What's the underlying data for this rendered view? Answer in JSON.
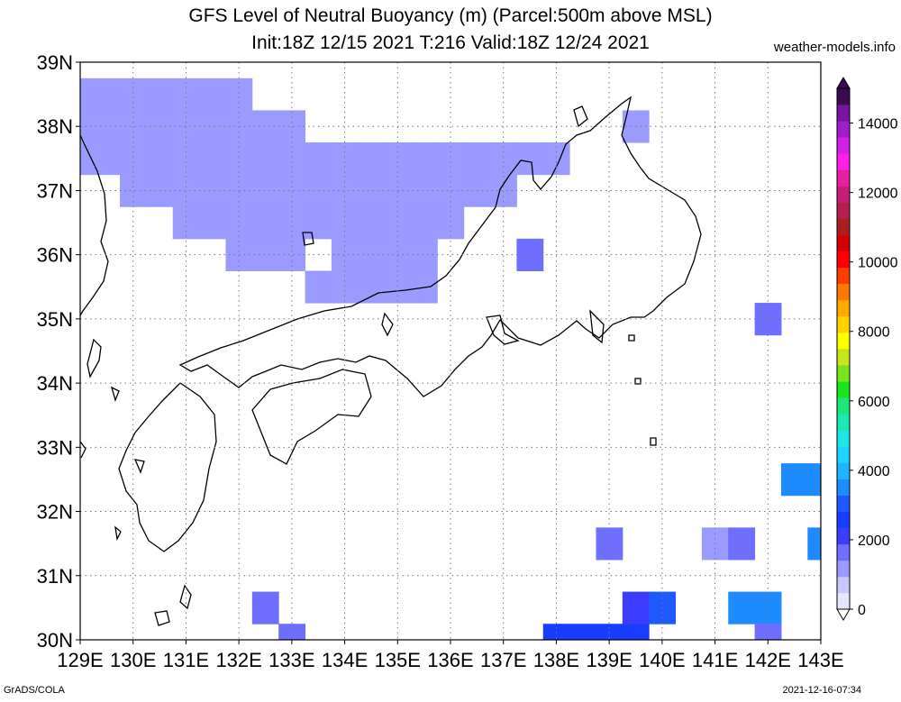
{
  "title_line1": "GFS Level of Neutral Buoyancy (m) (Parcel:500m above MSL)",
  "title_line2": "Init:18Z 12/15 2021 T:216 Valid:18Z 12/24 2021",
  "brand": "weather-models.info",
  "footer_left": "GrADS/COLA",
  "footer_right": "2021-12-16-07:34",
  "map": {
    "lon_range": [
      129,
      143
    ],
    "lat_range": [
      30,
      39
    ],
    "lon_labels": [
      "129E",
      "130E",
      "131E",
      "132E",
      "133E",
      "134E",
      "135E",
      "136E",
      "137E",
      "138E",
      "139E",
      "140E",
      "141E",
      "142E",
      "143E"
    ],
    "lat_labels": [
      "30N",
      "31N",
      "32N",
      "33N",
      "34N",
      "35N",
      "36N",
      "37N",
      "38N",
      "39N"
    ],
    "colorbar_labels": [
      "0",
      "2000",
      "4000",
      "6000",
      "8000",
      "10000",
      "12000",
      "14000"
    ],
    "colorbar_range": [
      0,
      15000
    ],
    "colorbar_colors": [
      "#e6e6ff",
      "#c8c8ff",
      "#9b9bff",
      "#6e6eff",
      "#3c3cff",
      "#1a3cff",
      "#1e5aff",
      "#1e8cff",
      "#1eb4ff",
      "#1ed2ff",
      "#1ee6e6",
      "#1ee6b4",
      "#1ee678",
      "#1ee61e",
      "#78e61e",
      "#c8e61e",
      "#ffff00",
      "#ffd200",
      "#ffaa00",
      "#ff7800",
      "#ff3c00",
      "#ff0000",
      "#d20000",
      "#aa1e1e",
      "#b41e50",
      "#c81e78",
      "#e61ea0",
      "#ff1ee6",
      "#d21ee6",
      "#a01ec8",
      "#7814a0",
      "#3c0a50"
    ],
    "cell_size_deg": 0.5,
    "field": [
      {
        "lon": 129.0,
        "lat": 38.5,
        "v": 1300
      },
      {
        "lon": 129.5,
        "lat": 38.5,
        "v": 1250
      },
      {
        "lon": 130.0,
        "lat": 38.5,
        "v": 1200
      },
      {
        "lon": 130.5,
        "lat": 38.5,
        "v": 1200
      },
      {
        "lon": 131.0,
        "lat": 38.5,
        "v": 1250
      },
      {
        "lon": 131.5,
        "lat": 38.5,
        "v": 1200
      },
      {
        "lon": 132.0,
        "lat": 38.5,
        "v": 1100
      },
      {
        "lon": 129.0,
        "lat": 38.0,
        "v": 1300
      },
      {
        "lon": 129.5,
        "lat": 38.0,
        "v": 1300
      },
      {
        "lon": 130.0,
        "lat": 38.0,
        "v": 1250
      },
      {
        "lon": 130.5,
        "lat": 38.0,
        "v": 1200
      },
      {
        "lon": 131.0,
        "lat": 38.0,
        "v": 1200
      },
      {
        "lon": 131.5,
        "lat": 38.0,
        "v": 1150
      },
      {
        "lon": 132.0,
        "lat": 38.0,
        "v": 1100
      },
      {
        "lon": 132.5,
        "lat": 38.0,
        "v": 1000
      },
      {
        "lon": 133.0,
        "lat": 38.0,
        "v": 950
      },
      {
        "lon": 129.0,
        "lat": 37.5,
        "v": 1300
      },
      {
        "lon": 129.5,
        "lat": 37.5,
        "v": 1300
      },
      {
        "lon": 130.0,
        "lat": 37.5,
        "v": 1250
      },
      {
        "lon": 130.5,
        "lat": 37.5,
        "v": 1250
      },
      {
        "lon": 131.0,
        "lat": 37.5,
        "v": 1200
      },
      {
        "lon": 131.5,
        "lat": 37.5,
        "v": 1150
      },
      {
        "lon": 132.0,
        "lat": 37.5,
        "v": 1100
      },
      {
        "lon": 132.5,
        "lat": 37.5,
        "v": 1050
      },
      {
        "lon": 133.0,
        "lat": 37.5,
        "v": 1050
      },
      {
        "lon": 133.5,
        "lat": 37.5,
        "v": 1100
      },
      {
        "lon": 134.0,
        "lat": 37.5,
        "v": 1150
      },
      {
        "lon": 134.5,
        "lat": 37.5,
        "v": 1100
      },
      {
        "lon": 135.0,
        "lat": 37.5,
        "v": 1100
      },
      {
        "lon": 135.5,
        "lat": 37.5,
        "v": 1150
      },
      {
        "lon": 136.0,
        "lat": 37.5,
        "v": 1200
      },
      {
        "lon": 136.5,
        "lat": 37.5,
        "v": 1250
      },
      {
        "lon": 137.0,
        "lat": 37.5,
        "v": 1250
      },
      {
        "lon": 137.5,
        "lat": 37.5,
        "v": 1300
      },
      {
        "lon": 138.0,
        "lat": 37.5,
        "v": 1300
      },
      {
        "lon": 130.0,
        "lat": 37.0,
        "v": 1300
      },
      {
        "lon": 130.5,
        "lat": 37.0,
        "v": 1250
      },
      {
        "lon": 131.0,
        "lat": 37.0,
        "v": 1200
      },
      {
        "lon": 131.5,
        "lat": 37.0,
        "v": 1150
      },
      {
        "lon": 132.0,
        "lat": 37.0,
        "v": 1100
      },
      {
        "lon": 132.5,
        "lat": 37.0,
        "v": 1050
      },
      {
        "lon": 133.0,
        "lat": 37.0,
        "v": 1000
      },
      {
        "lon": 133.5,
        "lat": 37.0,
        "v": 1050
      },
      {
        "lon": 134.0,
        "lat": 37.0,
        "v": 1100
      },
      {
        "lon": 134.5,
        "lat": 37.0,
        "v": 1150
      },
      {
        "lon": 135.0,
        "lat": 37.0,
        "v": 1200
      },
      {
        "lon": 135.5,
        "lat": 37.0,
        "v": 1200
      },
      {
        "lon": 136.0,
        "lat": 37.0,
        "v": 1250
      },
      {
        "lon": 136.5,
        "lat": 37.0,
        "v": 1300
      },
      {
        "lon": 137.0,
        "lat": 37.0,
        "v": 1300
      },
      {
        "lon": 131.0,
        "lat": 36.5,
        "v": 1200
      },
      {
        "lon": 131.5,
        "lat": 36.5,
        "v": 1150
      },
      {
        "lon": 132.0,
        "lat": 36.5,
        "v": 1100
      },
      {
        "lon": 132.5,
        "lat": 36.5,
        "v": 1050
      },
      {
        "lon": 133.0,
        "lat": 36.5,
        "v": 1000
      },
      {
        "lon": 133.5,
        "lat": 36.5,
        "v": 1050
      },
      {
        "lon": 134.0,
        "lat": 36.5,
        "v": 1100
      },
      {
        "lon": 134.5,
        "lat": 36.5,
        "v": 1150
      },
      {
        "lon": 135.0,
        "lat": 36.5,
        "v": 1200
      },
      {
        "lon": 135.5,
        "lat": 36.5,
        "v": 1250
      },
      {
        "lon": 136.0,
        "lat": 36.5,
        "v": 1300
      },
      {
        "lon": 132.0,
        "lat": 36.0,
        "v": 1000
      },
      {
        "lon": 132.5,
        "lat": 36.0,
        "v": 950
      },
      {
        "lon": 133.0,
        "lat": 36.0,
        "v": 950
      },
      {
        "lon": 134.0,
        "lat": 36.0,
        "v": 1050
      },
      {
        "lon": 134.5,
        "lat": 36.0,
        "v": 1100
      },
      {
        "lon": 135.0,
        "lat": 36.0,
        "v": 1150
      },
      {
        "lon": 135.5,
        "lat": 36.0,
        "v": 1200
      },
      {
        "lon": 133.5,
        "lat": 35.5,
        "v": 1100
      },
      {
        "lon": 134.0,
        "lat": 35.5,
        "v": 1150
      },
      {
        "lon": 134.5,
        "lat": 35.5,
        "v": 1200
      },
      {
        "lon": 135.0,
        "lat": 35.5,
        "v": 1250
      },
      {
        "lon": 135.5,
        "lat": 35.5,
        "v": 1300
      },
      {
        "lon": 139.5,
        "lat": 38.0,
        "v": 1400
      },
      {
        "lon": 137.5,
        "lat": 36.0,
        "v": 1500
      },
      {
        "lon": 142.0,
        "lat": 35.0,
        "v": 1500
      },
      {
        "lon": 142.5,
        "lat": 32.5,
        "v": 3300
      },
      {
        "lon": 143.0,
        "lat": 32.5,
        "v": 3600
      },
      {
        "lon": 143.0,
        "lat": 31.5,
        "v": 3500
      },
      {
        "lon": 139.0,
        "lat": 31.5,
        "v": 1500
      },
      {
        "lon": 141.0,
        "lat": 31.5,
        "v": 1400
      },
      {
        "lon": 141.5,
        "lat": 31.5,
        "v": 1600
      },
      {
        "lon": 132.5,
        "lat": 30.5,
        "v": 1600
      },
      {
        "lon": 133.0,
        "lat": 30.0,
        "v": 1500
      },
      {
        "lon": 137.5,
        "lat": 29.5,
        "v": 2600
      },
      {
        "lon": 138.0,
        "lat": 30.0,
        "v": 2700
      },
      {
        "lon": 138.5,
        "lat": 30.0,
        "v": 2800
      },
      {
        "lon": 139.0,
        "lat": 30.0,
        "v": 2800
      },
      {
        "lon": 139.5,
        "lat": 30.0,
        "v": 2500
      },
      {
        "lon": 139.5,
        "lat": 30.5,
        "v": 2200
      },
      {
        "lon": 140.0,
        "lat": 30.5,
        "v": 3100
      },
      {
        "lon": 141.5,
        "lat": 30.5,
        "v": 3400
      },
      {
        "lon": 142.0,
        "lat": 30.5,
        "v": 3400
      },
      {
        "lon": 142.0,
        "lat": 30.0,
        "v": 1600
      }
    ]
  }
}
